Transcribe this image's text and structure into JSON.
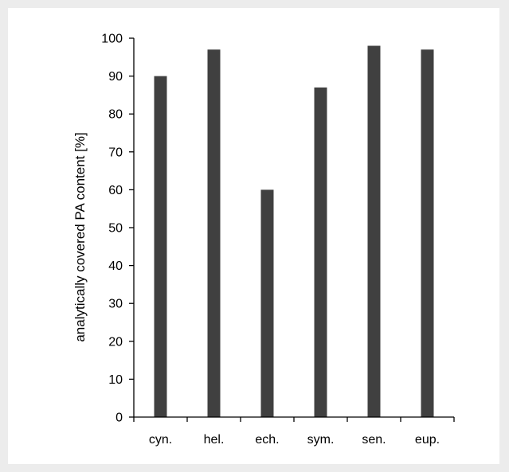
{
  "chart_data": {
    "type": "bar",
    "title": "",
    "xlabel": "",
    "ylabel": "analytically covered PA content [%]",
    "categories": [
      "cyn.",
      "hel.",
      "ech.",
      "sym.",
      "sen.",
      "eup."
    ],
    "values": [
      90,
      97,
      60,
      87,
      98,
      97
    ],
    "ylim": [
      0,
      100
    ],
    "yticks": [
      0,
      10,
      20,
      30,
      40,
      50,
      60,
      70,
      80,
      90,
      100
    ],
    "grid": false,
    "legend": "none",
    "bar_color": "#404040",
    "axis_color": "#000000"
  }
}
